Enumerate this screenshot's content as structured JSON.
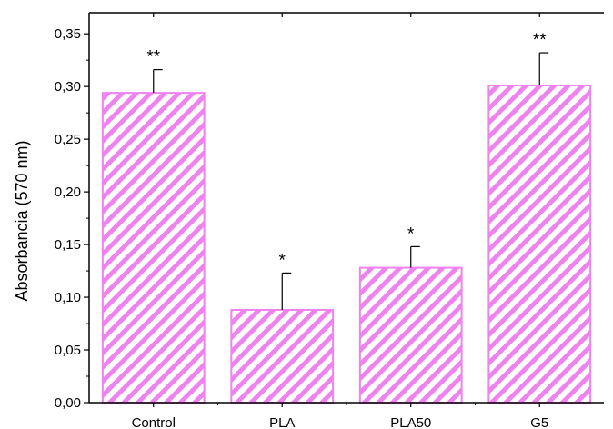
{
  "chart_data": {
    "type": "bar",
    "ylabel": "Absorbancia (570 nm)",
    "xlabel": "",
    "title": "",
    "ylim": [
      0,
      0.37
    ],
    "yticks": [
      0.0,
      0.05,
      0.1,
      0.15,
      0.2,
      0.25,
      0.3,
      0.35
    ],
    "ytick_labels": [
      "0,00",
      "0,05",
      "0,10",
      "0,15",
      "0,20",
      "0,25",
      "0,30",
      "0,35"
    ],
    "categories": [
      "Control",
      "PLA",
      "PLA50",
      "G5"
    ],
    "values": [
      0.294,
      0.088,
      0.128,
      0.301
    ],
    "errors": [
      0.022,
      0.035,
      0.02,
      0.031
    ],
    "significance": [
      "**",
      "*",
      "*",
      "**"
    ],
    "bar_fill": "#ffffff",
    "bar_pattern_color": "#ee82ee",
    "bar_edge_color": "#ee82ee",
    "grid": false,
    "legend": "none"
  }
}
